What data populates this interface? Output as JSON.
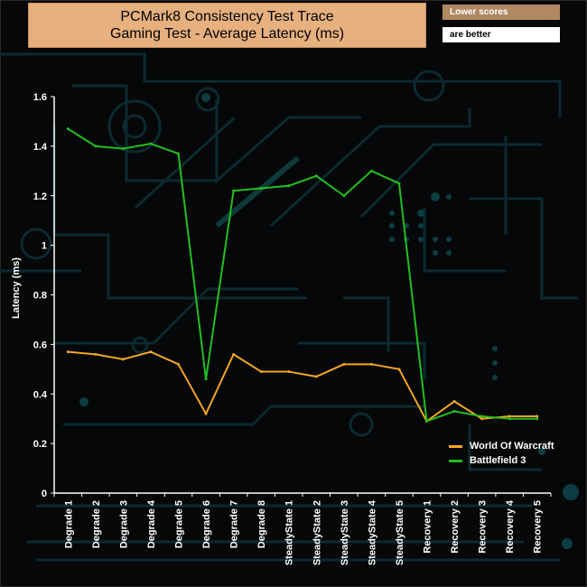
{
  "title": {
    "line1": "PCMark8 Consistency Test Trace",
    "line2": "Gaming Test -  Average Latency (ms)"
  },
  "note": {
    "line1": "Lower scores",
    "line2": "are better"
  },
  "colors": {
    "series1": "#f5a623",
    "series2": "#22c020",
    "axis": "#ffffff",
    "background": "#050708",
    "circuit": "#0c2a30"
  },
  "chart_data": {
    "type": "line",
    "title": "PCMark8 Consistency Test Trace Gaming Test -  Average Latency (ms)",
    "ylabel": "Latency (ms)",
    "xlabel": "",
    "ylim": [
      0,
      1.6
    ],
    "yticks": [
      "0",
      "0.2",
      "0.4",
      "0.6",
      "0.8",
      "1",
      "1.2",
      "1.4",
      "1.6"
    ],
    "grid": false,
    "legend_position": "bottom-right",
    "categories": [
      "Degrade 1",
      "Degrade 2",
      "Degrade 3",
      "Degrade 4",
      "Degrade 5",
      "Degrade 6",
      "Degrade 7",
      "Degrade 8",
      "SteadyState 1",
      "SteadyState 2",
      "SteadyState 3",
      "SteadyState 4",
      "SteadyState 5",
      "Recovery 1",
      "Recovery 2",
      "Recovery 3",
      "Recovery 4",
      "Recovery 5"
    ],
    "series": [
      {
        "name": "World Of Warcraft",
        "color": "#f5a623",
        "values": [
          0.57,
          0.56,
          0.54,
          0.57,
          0.52,
          0.32,
          0.56,
          0.49,
          0.49,
          0.47,
          0.52,
          0.52,
          0.5,
          0.29,
          0.37,
          0.3,
          0.31,
          0.31
        ]
      },
      {
        "name": "Battlefield 3",
        "color": "#22c020",
        "values": [
          1.47,
          1.4,
          1.39,
          1.41,
          1.37,
          0.46,
          1.22,
          1.23,
          1.24,
          1.28,
          1.2,
          1.3,
          1.25,
          0.29,
          0.33,
          0.31,
          0.3,
          0.3
        ]
      }
    ]
  }
}
